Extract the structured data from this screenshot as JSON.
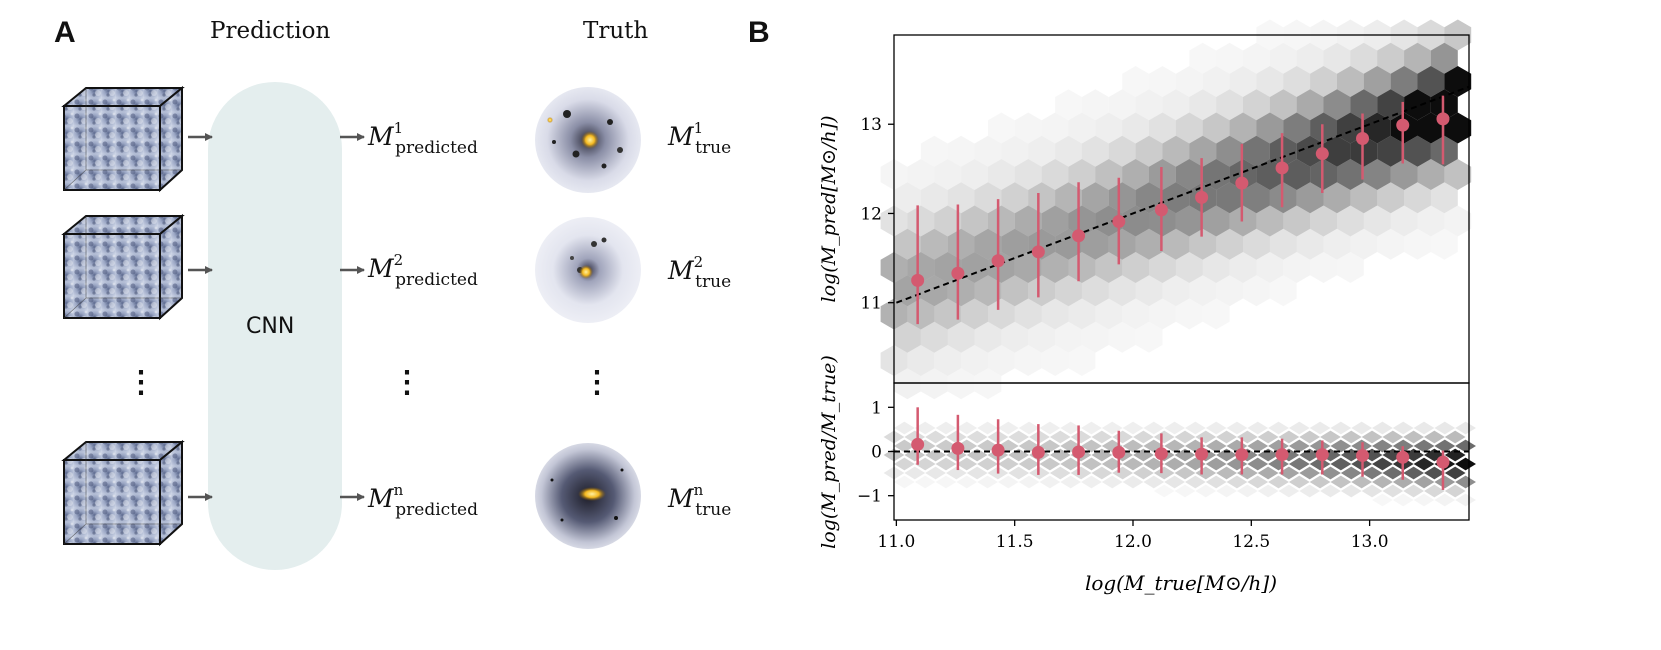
{
  "panel_a": {
    "letter": "A",
    "prediction_header": "Prediction",
    "truth_header": "Truth",
    "cnn_label": "CNN",
    "ellipsis": "⋮",
    "predicted_labels": [
      {
        "symbol": "M",
        "sup": "1",
        "sub": "predicted"
      },
      {
        "symbol": "M",
        "sup": "2",
        "sub": "predicted"
      },
      {
        "symbol": "M",
        "sup": "n",
        "sub": "predicted"
      }
    ],
    "true_labels": [
      {
        "symbol": "M",
        "sup": "1",
        "sub": "true"
      },
      {
        "symbol": "M",
        "sup": "2",
        "sub": "true"
      },
      {
        "symbol": "M",
        "sup": "n",
        "sub": "true"
      }
    ]
  },
  "panel_b": {
    "letter": "B",
    "colors": {
      "points": "#d45a70",
      "dashed": "#000000",
      "hex": "#000000"
    }
  },
  "chart_data": {
    "type": "scatter",
    "xlabel": "log(M_true[M⊙/h])",
    "xlim": [
      10.99,
      13.42
    ],
    "x_ticks": [
      11.0,
      11.5,
      12.0,
      12.5,
      13.0
    ],
    "x_tick_labels": [
      "11.0",
      "11.5",
      "12.0",
      "12.5",
      "13.0"
    ],
    "top": {
      "ylabel": "log(M_pred[M⊙/h])",
      "ylim": [
        10.1,
        14.0
      ],
      "y_ticks": [
        11,
        12,
        13
      ],
      "y_tick_labels": [
        "11",
        "12",
        "13"
      ],
      "reference_line": "y = x (dashed)",
      "series": [
        {
          "x": [
            11.09,
            11.26,
            11.43,
            11.6,
            11.77,
            11.94,
            12.12,
            12.29,
            12.46,
            12.63,
            12.8,
            12.97,
            13.14,
            13.31
          ],
          "y": [
            11.25,
            11.33,
            11.47,
            11.57,
            11.75,
            11.91,
            12.04,
            12.18,
            12.34,
            12.51,
            12.67,
            12.84,
            12.99,
            13.06
          ],
          "err_low": [
            10.76,
            10.81,
            10.92,
            11.06,
            11.24,
            11.43,
            11.58,
            11.74,
            11.91,
            12.07,
            12.23,
            12.38,
            12.56,
            12.55
          ],
          "err_high": [
            12.09,
            12.1,
            12.16,
            12.23,
            12.35,
            12.4,
            12.52,
            12.62,
            12.78,
            12.9,
            13.0,
            13.12,
            13.25,
            13.32
          ]
        }
      ]
    },
    "bottom": {
      "ylabel": "log(M_pred/M_true)",
      "ylim": [
        -1.55,
        1.55
      ],
      "y_ticks": [
        -1,
        0,
        1
      ],
      "y_tick_labels": [
        "−1",
        "0",
        "1"
      ],
      "reference_line": "y = 0 (dashed)",
      "series": [
        {
          "x": [
            11.09,
            11.26,
            11.43,
            11.6,
            11.77,
            11.94,
            12.12,
            12.29,
            12.46,
            12.63,
            12.8,
            12.97,
            13.14,
            13.31
          ],
          "y": [
            0.16,
            0.07,
            0.03,
            -0.02,
            -0.01,
            -0.02,
            -0.05,
            -0.06,
            -0.07,
            -0.07,
            -0.07,
            -0.09,
            -0.13,
            -0.24
          ],
          "err_low": [
            -0.3,
            -0.42,
            -0.5,
            -0.53,
            -0.53,
            -0.48,
            -0.49,
            -0.52,
            -0.52,
            -0.52,
            -0.52,
            -0.57,
            -0.64,
            -0.87
          ],
          "err_high": [
            1.0,
            0.83,
            0.73,
            0.62,
            0.59,
            0.47,
            0.41,
            0.32,
            0.32,
            0.29,
            0.25,
            0.21,
            0.12,
            0.02
          ]
        }
      ]
    }
  }
}
